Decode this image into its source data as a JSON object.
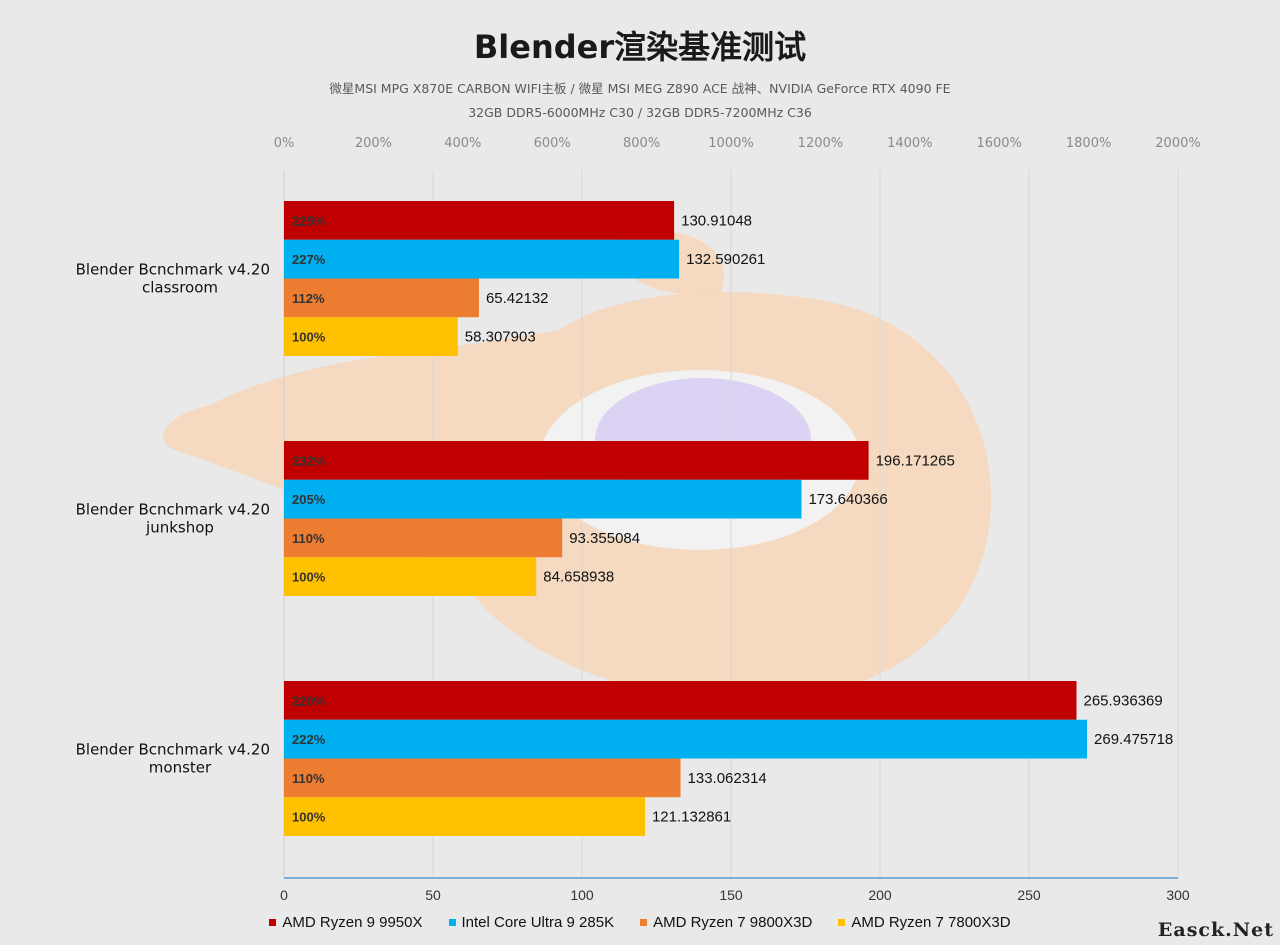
{
  "header": {
    "title": "Blender渲染基准测试",
    "subtitle_line1": "微星MSI MPG X870E CARBON WIFI主板 / 微星 MSI MEG Z890 ACE 战神、NVIDIA GeForce RTX 4090 FE",
    "subtitle_line2": "32GB DDR5-6000MHz  C30 / 32GB DDR5-7200MHz  C36"
  },
  "watermark": "Easck.Net",
  "colors": {
    "AMD Ryzen 9 9950X": "#c00000",
    "Intel Core Ultra 9 285K": "#00b0f0",
    "AMD Ryzen 7 9800X3D": "#ed7d31",
    "AMD Ryzen 7 7800X3D": "#ffc000"
  },
  "chart_data": {
    "type": "bar",
    "orientation": "horizontal",
    "categories": [
      "Blender Bcnchmark v4.20 classroom",
      "Blender Bcnchmark v4.20 junkshop",
      "Blender Bcnchmark v4.20 monster"
    ],
    "x_bottom": {
      "ticks": [
        "0",
        "50",
        "100",
        "150",
        "200",
        "250",
        "300"
      ],
      "range": [
        0,
        300
      ]
    },
    "x_top": {
      "ticks": [
        "0%",
        "200%",
        "400%",
        "600%",
        "800%",
        "1000%",
        "1200%",
        "1400%",
        "1600%",
        "1800%",
        "2000%"
      ],
      "range": [
        0,
        2000
      ]
    },
    "series": [
      {
        "name": "AMD Ryzen 9 9950X",
        "values": [
          130.91048,
          196.171265,
          265.936369
        ],
        "value_labels": [
          "130.91048",
          "196.171265",
          "265.936369"
        ],
        "percent_labels": [
          "225%",
          "232%",
          "220%"
        ]
      },
      {
        "name": "Intel Core Ultra 9 285K",
        "values": [
          132.590261,
          173.640366,
          269.475718
        ],
        "value_labels": [
          "132.590261",
          "173.640366",
          "269.475718"
        ],
        "percent_labels": [
          "227%",
          "205%",
          "222%"
        ]
      },
      {
        "name": "AMD Ryzen 7 9800X3D",
        "values": [
          65.42132,
          93.355084,
          133.062314
        ],
        "value_labels": [
          "65.42132",
          "93.355084",
          "133.062314"
        ],
        "percent_labels": [
          "112%",
          "110%",
          "110%"
        ]
      },
      {
        "name": "AMD Ryzen 7 7800X3D",
        "values": [
          58.307903,
          84.658938,
          121.132861
        ],
        "value_labels": [
          "58.307903",
          "84.658938",
          "121.132861"
        ],
        "percent_labels": [
          "100%",
          "100%",
          "100%"
        ]
      }
    ],
    "legend": "bottom",
    "grid": true
  }
}
